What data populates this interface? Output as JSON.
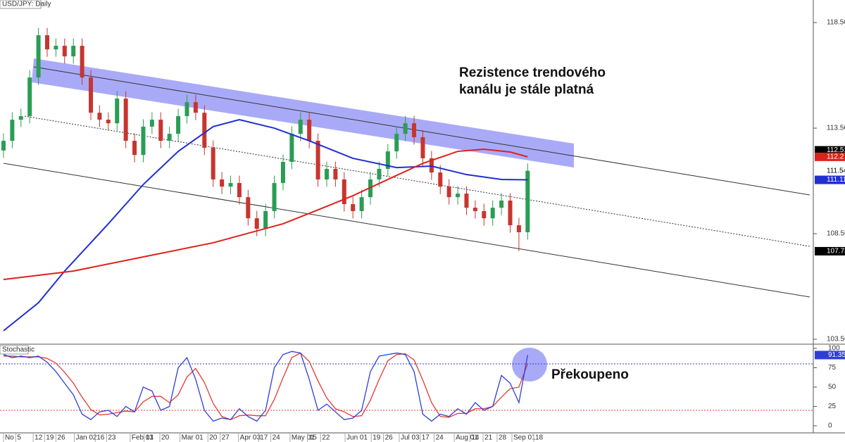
{
  "chart_data": [
    {
      "type": "candlestick",
      "title": "USD/JPY: Daily",
      "open": [
        112.5,
        112.96,
        113.96,
        114.13,
        115.96,
        117.96,
        117.29,
        117.46,
        116.96,
        117.46,
        115.96,
        114.29,
        113.96,
        113.79,
        114.96,
        112.96,
        112.29,
        113.63,
        113.96,
        112.96,
        113.29,
        114.13,
        114.79,
        114.29,
        112.63,
        111.13,
        110.79,
        110.96,
        110.29,
        109.29,
        108.79,
        109.63,
        110.96,
        111.96,
        113.29,
        113.96,
        112.96,
        111.13,
        111.63,
        111.13,
        109.96,
        109.63,
        110.29,
        111.13,
        111.63,
        112.46,
        113.29,
        113.79,
        113.13,
        112.13,
        111.46,
        110.79,
        110.29,
        110.46,
        109.79,
        109.63,
        109.29,
        109.79,
        110.13,
        108.96,
        108.63
      ],
      "high": [
        113.31,
        114.31,
        114.48,
        116.31,
        118.31,
        118.31,
        117.81,
        117.81,
        117.81,
        117.81,
        116.31,
        114.64,
        114.31,
        115.31,
        115.31,
        113.31,
        113.98,
        114.31,
        114.31,
        113.64,
        114.48,
        115.14,
        115.14,
        114.64,
        112.98,
        111.48,
        111.31,
        111.31,
        110.64,
        109.64,
        109.98,
        111.31,
        112.31,
        113.64,
        114.31,
        114.31,
        113.31,
        111.98,
        111.98,
        111.48,
        110.31,
        110.64,
        111.48,
        111.98,
        112.81,
        113.64,
        114.14,
        114.14,
        113.48,
        112.48,
        111.81,
        111.14,
        110.81,
        110.81,
        110.14,
        109.98,
        110.14,
        110.48,
        110.48,
        109.31,
        111.89
      ],
      "low": [
        112.15,
        112.61,
        113.61,
        113.78,
        115.61,
        116.94,
        116.94,
        116.61,
        116.61,
        115.61,
        113.94,
        113.61,
        113.44,
        113.44,
        112.61,
        111.94,
        111.94,
        113.28,
        112.61,
        112.61,
        112.94,
        113.78,
        113.94,
        112.28,
        110.78,
        110.44,
        110.44,
        109.94,
        108.94,
        108.44,
        108.44,
        109.28,
        110.61,
        111.61,
        112.94,
        112.61,
        110.78,
        110.78,
        110.78,
        109.61,
        109.28,
        109.28,
        109.94,
        110.78,
        111.28,
        112.11,
        112.94,
        112.78,
        111.78,
        111.11,
        110.44,
        109.94,
        109.94,
        109.44,
        109.28,
        108.94,
        108.94,
        109.44,
        108.61,
        107.73,
        108.28
      ],
      "close": [
        112.96,
        113.96,
        114.13,
        115.96,
        117.96,
        117.29,
        117.46,
        116.96,
        117.46,
        115.96,
        114.29,
        113.96,
        113.79,
        114.96,
        112.96,
        112.29,
        113.63,
        113.96,
        112.96,
        113.29,
        114.13,
        114.79,
        114.29,
        112.63,
        111.13,
        110.79,
        110.96,
        110.29,
        109.29,
        108.79,
        109.63,
        110.96,
        111.96,
        113.29,
        113.96,
        112.96,
        111.13,
        111.63,
        111.13,
        109.96,
        109.63,
        110.29,
        111.13,
        111.63,
        112.46,
        113.29,
        113.79,
        113.13,
        112.13,
        111.46,
        110.79,
        110.29,
        110.46,
        109.79,
        109.63,
        109.29,
        109.79,
        110.13,
        108.96,
        108.63,
        111.54
      ],
      "up_color": "#2a9d55",
      "down_color": "#c7352f",
      "overlays": [
        {
          "color": "#1f2fd0",
          "x": [
            0,
            4,
            7,
            12,
            16,
            20,
            24,
            27,
            31,
            35,
            40,
            45,
            49,
            53,
            57,
            60
          ],
          "values": [
            103.96,
            105.29,
            106.79,
            109.03,
            110.89,
            112.46,
            113.63,
            113.96,
            113.56,
            112.96,
            112.13,
            111.69,
            111.76,
            111.36,
            111.13,
            111.11
          ]
        },
        {
          "color": "#e0201c",
          "x": [
            0,
            8,
            16,
            24,
            32,
            36,
            40,
            44,
            48,
            52,
            55,
            58,
            60
          ],
          "values": [
            106.39,
            106.79,
            107.46,
            108.13,
            109.03,
            109.69,
            110.36,
            111.13,
            111.89,
            112.46,
            112.56,
            112.43,
            112.2
          ]
        }
      ],
      "level": 112.51,
      "ylim": [
        103.36,
        119.63
      ],
      "yticks": [
        103.56,
        108.56,
        113.56,
        118.56
      ],
      "annotation": [
        "Rezistence trendového",
        "kanálu je stále platná"
      ]
    },
    {
      "type": "line",
      "title": "Stochastic",
      "series": [
        {
          "color": "#2f3fd6",
          "values": [
            92,
            88,
            90,
            88,
            90,
            82,
            70,
            55,
            40,
            15,
            8,
            18,
            20,
            12,
            25,
            18,
            50,
            45,
            20,
            25,
            75,
            88,
            60,
            20,
            6,
            10,
            8,
            22,
            12,
            6,
            20,
            75,
            92,
            96,
            94,
            60,
            20,
            28,
            18,
            8,
            10,
            20,
            70,
            90,
            92,
            94,
            92,
            70,
            15,
            6,
            15,
            12,
            22,
            15,
            30,
            20,
            25,
            65,
            55,
            30,
            91.35
          ]
        },
        {
          "color": "#e53935",
          "values": [
            90,
            90,
            89,
            89,
            89,
            87,
            81,
            69,
            55,
            37,
            21,
            14,
            15,
            17,
            19,
            18,
            31,
            38,
            38,
            30,
            40,
            63,
            74,
            56,
            29,
            12,
            8,
            13,
            14,
            13,
            13,
            34,
            62,
            88,
            94,
            83,
            58,
            36,
            22,
            18,
            12,
            13,
            33,
            60,
            84,
            92,
            93,
            85,
            59,
            30,
            12,
            11,
            16,
            16,
            22,
            22,
            25,
            37,
            48,
            50,
            80
          ]
        }
      ],
      "levels": [
        {
          "value": 80,
          "color": "#2f3fd6"
        },
        {
          "value": 20,
          "color": "#e53935"
        }
      ],
      "ylim": [
        -9.1,
        104.5
      ],
      "yticks": [
        0,
        25,
        50,
        75,
        100
      ],
      "xlim": [
        -0.4,
        92.7
      ],
      "xticks": [
        {
          "value": 0,
          "label": "No"
        },
        {
          "value": 1.4,
          "label": "5"
        },
        {
          "value": 3.4,
          "label": "12"
        },
        {
          "value": 4.7,
          "label": "19"
        },
        {
          "value": 6.0,
          "label": "26"
        },
        {
          "value": 8.1,
          "label": "Jan 02"
        },
        {
          "value": 10.5,
          "label": "16"
        },
        {
          "value": 11.8,
          "label": "23"
        },
        {
          "value": 14.5,
          "label": "Feb 01"
        },
        {
          "value": 16.1,
          "label": "13"
        },
        {
          "value": 17.9,
          "label": "20"
        },
        {
          "value": 20.2,
          "label": "Mar 01"
        },
        {
          "value": 23.4,
          "label": "20"
        },
        {
          "value": 24.8,
          "label": "27"
        },
        {
          "value": 26.9,
          "label": "Apr 03"
        },
        {
          "value": 29.2,
          "label": "17"
        },
        {
          "value": 30.6,
          "label": "24"
        },
        {
          "value": 32.8,
          "label": "May 01"
        },
        {
          "value": 34.8,
          "label": "15"
        },
        {
          "value": 36.3,
          "label": "22"
        },
        {
          "value": 39.1,
          "label": "Jun 01"
        },
        {
          "value": 42.1,
          "label": "19"
        },
        {
          "value": 43.5,
          "label": "26"
        },
        {
          "value": 45.3,
          "label": "Jul 03"
        },
        {
          "value": 47.7,
          "label": "17"
        },
        {
          "value": 49.3,
          "label": "24"
        },
        {
          "value": 51.6,
          "label": "Aug 01"
        },
        {
          "value": 53.4,
          "label": "14"
        },
        {
          "value": 54.9,
          "label": "21"
        },
        {
          "value": 56.5,
          "label": "28"
        },
        {
          "value": 58.2,
          "label": "Sep 01"
        },
        {
          "value": 60.7,
          "label": "18"
        }
      ],
      "annotation": "Překoupeno"
    }
  ]
}
